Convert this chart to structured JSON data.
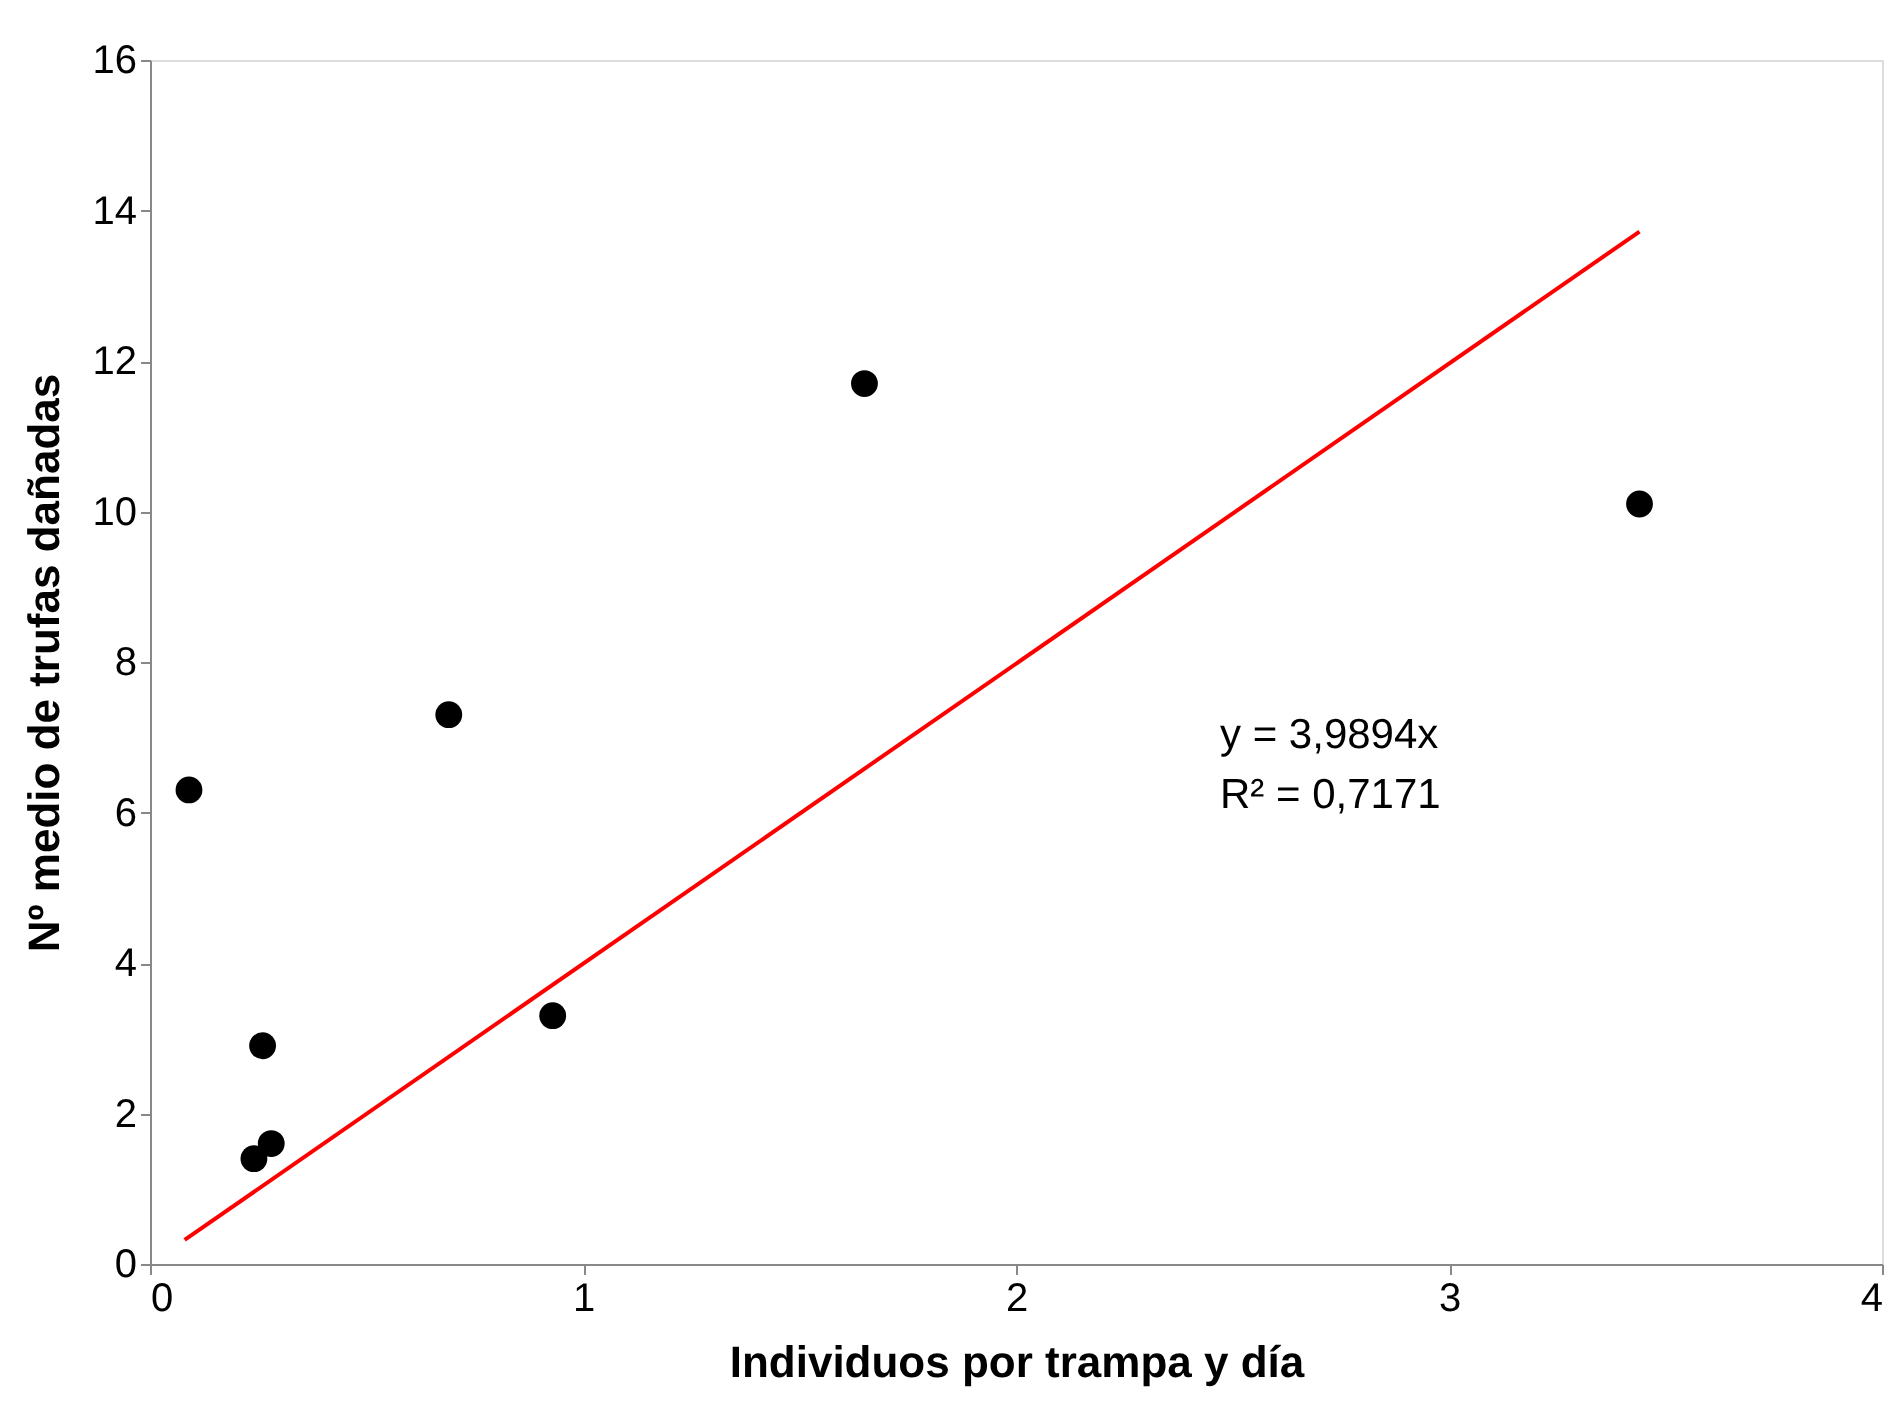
{
  "chart_data": {
    "type": "scatter",
    "xlabel": "Individuos por trampa y día",
    "ylabel": "Nº medio de trufas dañadas",
    "xlim": [
      0,
      4
    ],
    "xticks": [
      0,
      1,
      2,
      3,
      4
    ],
    "ylim": [
      0,
      16
    ],
    "yticks": [
      0,
      2,
      4,
      6,
      8,
      10,
      12,
      14,
      16
    ],
    "marker": "circle",
    "series": [
      {
        "color": "#000000",
        "x": [
          0.09,
          0.26,
          0.28,
          0.24,
          0.69,
          0.93,
          1.65,
          3.44
        ],
        "values": [
          6.3,
          2.9,
          1.6,
          1.4,
          7.3,
          3.3,
          11.7,
          10.1
        ]
      },
      {
        "type": "line",
        "color": "#ff0000",
        "marker": "none",
        "x": [
          0.08,
          3.44
        ],
        "values": [
          0.32,
          13.72
        ]
      }
    ],
    "annotations": [
      "y = 3,9894x",
      "R² = 0,7171"
    ]
  }
}
